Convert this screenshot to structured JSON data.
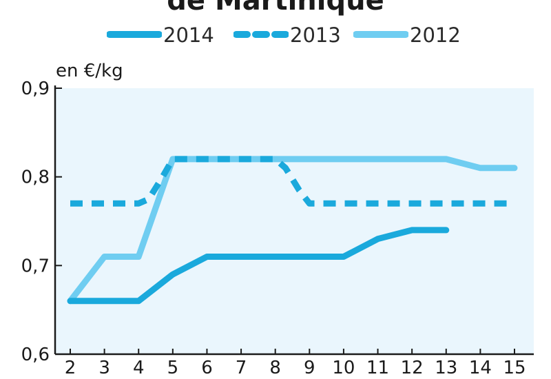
{
  "chart_data": {
    "type": "line",
    "title": "de Martinique",
    "ylabel": "en €/kg",
    "xlabel": "",
    "x": [
      2,
      3,
      4,
      5,
      6,
      7,
      8,
      9,
      10,
      11,
      12,
      13,
      14,
      15
    ],
    "xlim": [
      2,
      15
    ],
    "ylim": [
      0.6,
      0.9
    ],
    "yticks": [
      "0,6",
      "0,7",
      "0,8",
      "0,9"
    ],
    "ytick_values": [
      0.6,
      0.7,
      0.8,
      0.9
    ],
    "xticks": [
      "2",
      "3",
      "4",
      "5",
      "6",
      "7",
      "8",
      "9",
      "10",
      "11",
      "12",
      "13",
      "14",
      "15"
    ],
    "legend_position": "top-center",
    "grid": false,
    "plot_background": "#eaf6fd",
    "series": [
      {
        "name": "2014",
        "style": "solid",
        "color": "#1aa9dc",
        "x": [
          2,
          3,
          4,
          5,
          6,
          7,
          8,
          9,
          10,
          11,
          12,
          13
        ],
        "values": [
          0.66,
          0.66,
          0.66,
          0.69,
          0.71,
          0.71,
          0.71,
          0.71,
          0.71,
          0.73,
          0.74,
          0.74
        ]
      },
      {
        "name": "2013",
        "style": "dashed",
        "color": "#1aa9dc",
        "x": [
          2,
          3,
          4,
          4.3,
          4.7,
          5,
          6,
          7,
          8,
          8.3,
          8.7,
          9,
          10,
          11,
          12,
          13,
          14,
          15
        ],
        "values": [
          0.77,
          0.77,
          0.77,
          0.775,
          0.8,
          0.82,
          0.82,
          0.82,
          0.82,
          0.81,
          0.785,
          0.77,
          0.77,
          0.77,
          0.77,
          0.77,
          0.77,
          0.77
        ]
      },
      {
        "name": "2012",
        "style": "solid",
        "color": "#6fcdf1",
        "x": [
          2,
          3,
          4,
          5,
          6,
          7,
          8,
          9,
          10,
          11,
          12,
          13,
          14,
          15
        ],
        "values": [
          0.66,
          0.71,
          0.71,
          0.82,
          0.82,
          0.82,
          0.82,
          0.82,
          0.82,
          0.82,
          0.82,
          0.82,
          0.81,
          0.81
        ]
      }
    ]
  }
}
